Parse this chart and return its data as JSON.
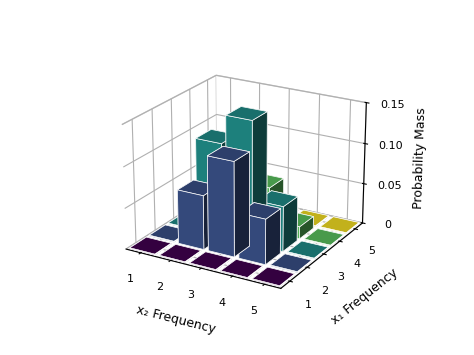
{
  "xlabel": "x₂ Frequency",
  "ylabel": "x₁ Frequency",
  "zlabel": "Probability Mass",
  "x2_ticks": [
    1,
    2,
    3,
    4,
    5
  ],
  "x1_ticks": [
    1,
    2,
    3,
    4,
    5
  ],
  "zlim": [
    0,
    0.15
  ],
  "zticks": [
    0,
    0.05,
    0.1,
    0.15
  ],
  "probs": [
    [
      0.0,
      0.0,
      0.0,
      0.0,
      0.0
    ],
    [
      0.0,
      0.066,
      0.115,
      0.055,
      0.0
    ],
    [
      0.0,
      0.115,
      0.15,
      0.055,
      0.0
    ],
    [
      0.0,
      0.055,
      0.055,
      0.015,
      0.0
    ],
    [
      0.0,
      0.0,
      0.0,
      0.0,
      0.0
    ]
  ],
  "colormap": "viridis",
  "bar_width": 0.85,
  "bar_depth": 0.85,
  "elev": 22,
  "azim": -60,
  "background_color": "#ffffff",
  "pane_color": "#ffffff"
}
